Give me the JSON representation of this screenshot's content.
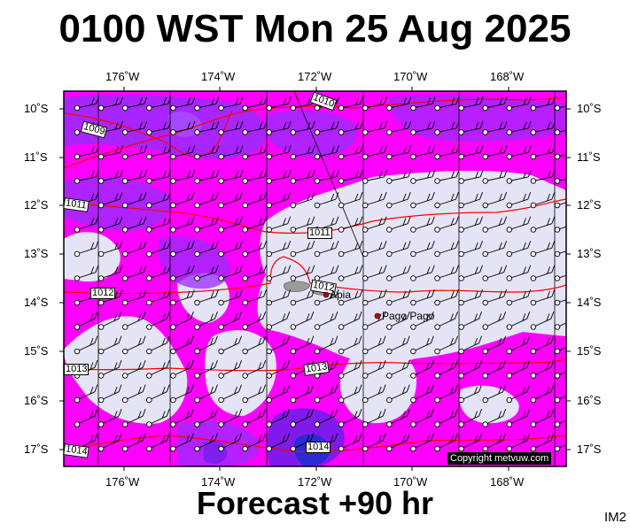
{
  "title": "0100 WST Mon 25 Aug 2025",
  "footer": "Forecast +90 hr",
  "code": "IM2",
  "copyright": "Copyright metvuw.com",
  "colors": {
    "rain_light": "#e4e4f6",
    "rain_magenta": "#ff00ff",
    "rain_violet": "#9a2cff",
    "rain_purple": "#6a1ee6",
    "rain_blue": "#2b2bd6",
    "isobar": "#ff0000"
  },
  "lon_labels": [
    "176˚W",
    "174˚W",
    "172˚W",
    "170˚W",
    "168˚W"
  ],
  "lat_labels": [
    "10˚S",
    "11˚S",
    "12˚S",
    "13˚S",
    "14˚S",
    "15˚S",
    "16˚S",
    "17˚S"
  ],
  "isobar_labels": [
    "1010",
    "1009",
    "1011",
    "1011",
    "1012",
    "1012",
    "1013",
    "1013",
    "1014",
    "1014"
  ],
  "places": [
    {
      "name": "Apia"
    },
    {
      "name": "Pago Pago"
    }
  ]
}
